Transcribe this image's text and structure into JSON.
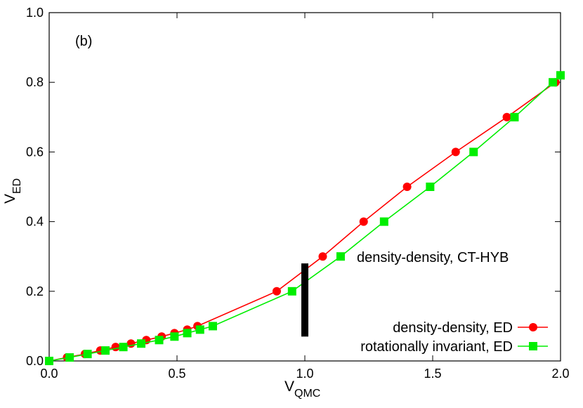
{
  "chart_data": {
    "type": "line",
    "panel_label": "(b)",
    "xlabel_main": "V",
    "xlabel_sub": "QMC",
    "ylabel_main": "V",
    "ylabel_sub": "ED",
    "xlim": [
      0.0,
      2.0
    ],
    "ylim": [
      0.0,
      1.0
    ],
    "x_ticks": [
      0.0,
      0.5,
      1.0,
      1.5,
      2.0
    ],
    "x_tick_labels": [
      "0.0",
      "0.5",
      "1.0",
      "1.5",
      "2.0"
    ],
    "y_ticks": [
      0.0,
      0.2,
      0.4,
      0.6,
      0.8,
      1.0
    ],
    "y_tick_labels": [
      "0.0",
      "0.2",
      "0.4",
      "0.6",
      "0.8",
      "1.0"
    ],
    "grid": false,
    "legend_position": "bottom-right",
    "annotation": {
      "text": "density-density, CT-HYB",
      "bar_x": 1.0,
      "bar_y_range": [
        0.07,
        0.28
      ],
      "color": "#000000"
    },
    "series": [
      {
        "name": "density-density, ED",
        "color": "#ff0000",
        "marker": "circle",
        "points": [
          [
            0.0,
            0.0
          ],
          [
            0.07,
            0.01
          ],
          [
            0.14,
            0.02
          ],
          [
            0.2,
            0.03
          ],
          [
            0.26,
            0.04
          ],
          [
            0.32,
            0.05
          ],
          [
            0.38,
            0.06
          ],
          [
            0.44,
            0.07
          ],
          [
            0.49,
            0.08
          ],
          [
            0.54,
            0.09
          ],
          [
            0.58,
            0.1
          ],
          [
            0.89,
            0.2
          ],
          [
            1.07,
            0.3
          ],
          [
            1.23,
            0.4
          ],
          [
            1.4,
            0.5
          ],
          [
            1.59,
            0.6
          ],
          [
            1.79,
            0.7
          ],
          [
            1.98,
            0.8
          ]
        ]
      },
      {
        "name": "rotationally invariant, ED",
        "color": "#00ee00",
        "marker": "square",
        "points": [
          [
            0.0,
            0.0
          ],
          [
            0.08,
            0.01
          ],
          [
            0.15,
            0.02
          ],
          [
            0.22,
            0.03
          ],
          [
            0.29,
            0.04
          ],
          [
            0.36,
            0.05
          ],
          [
            0.43,
            0.06
          ],
          [
            0.49,
            0.07
          ],
          [
            0.54,
            0.08
          ],
          [
            0.59,
            0.09
          ],
          [
            0.64,
            0.1
          ],
          [
            0.95,
            0.2
          ],
          [
            1.14,
            0.3
          ],
          [
            1.31,
            0.4
          ],
          [
            1.49,
            0.5
          ],
          [
            1.66,
            0.6
          ],
          [
            1.82,
            0.7
          ],
          [
            1.97,
            0.8
          ],
          [
            2.0,
            0.82
          ]
        ]
      }
    ]
  }
}
